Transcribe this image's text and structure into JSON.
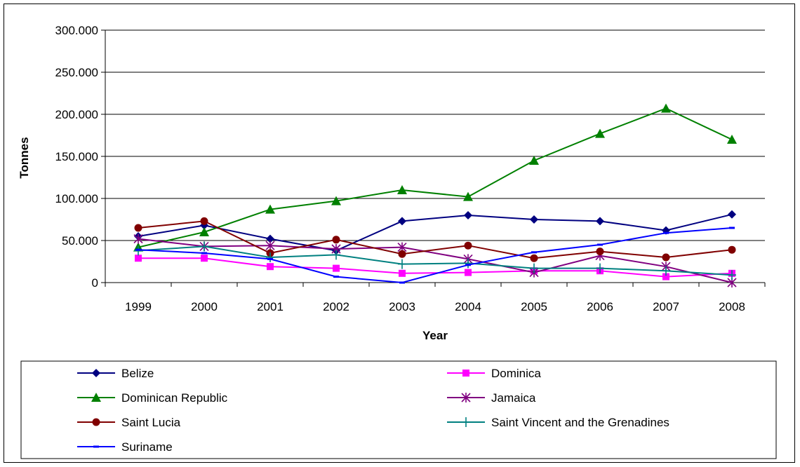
{
  "chart_data": {
    "type": "line",
    "title": "",
    "xlabel": "Year",
    "ylabel": "Tonnes",
    "ylim": [
      0,
      300000
    ],
    "yticks": [
      "0",
      "50.000",
      "100.000",
      "150.000",
      "200.000",
      "250.000",
      "300.000"
    ],
    "x": [
      "1999",
      "2000",
      "2001",
      "2002",
      "2003",
      "2004",
      "2005",
      "2006",
      "2007",
      "2008"
    ],
    "grid": "horizontal",
    "legend_position": "bottom",
    "series": [
      {
        "name": "Belize",
        "color": "#000080",
        "marker": "diamond",
        "values": [
          55000,
          68000,
          52000,
          38000,
          73000,
          80000,
          75000,
          73000,
          62000,
          81000
        ]
      },
      {
        "name": "Dominica",
        "color": "#FF00FF",
        "marker": "square",
        "values": [
          29000,
          29000,
          19000,
          17000,
          11000,
          12000,
          14000,
          14000,
          7000,
          11000
        ]
      },
      {
        "name": "Dominican Republic",
        "color": "#008000",
        "marker": "triangle",
        "values": [
          42000,
          60000,
          87000,
          97000,
          110000,
          102000,
          145000,
          177000,
          207000,
          170000
        ]
      },
      {
        "name": "Jamaica",
        "color": "#800080",
        "marker": "asterisk",
        "values": [
          52000,
          43000,
          44000,
          40000,
          42000,
          28000,
          12000,
          32000,
          19000,
          0
        ]
      },
      {
        "name": "Saint Lucia",
        "color": "#800000",
        "marker": "circle",
        "values": [
          65000,
          73000,
          35000,
          51000,
          34000,
          44000,
          29000,
          37000,
          30000,
          39000
        ]
      },
      {
        "name": "Saint Vincent and the Grenadines",
        "color": "#008080",
        "marker": "plus",
        "values": [
          38000,
          43000,
          30000,
          33000,
          22000,
          23000,
          17000,
          17000,
          14000,
          9000
        ]
      },
      {
        "name": "Suriname",
        "color": "#0000FF",
        "marker": "dash",
        "values": [
          39000,
          35000,
          28000,
          7000,
          0,
          21000,
          36000,
          45000,
          59000,
          65000
        ]
      }
    ]
  }
}
